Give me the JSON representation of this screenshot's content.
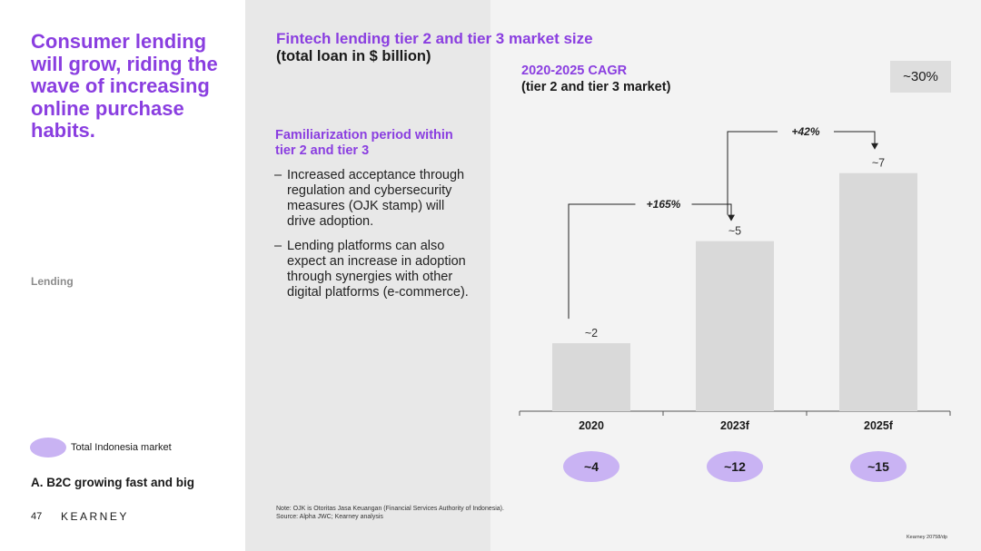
{
  "headline": "Consumer lending will grow, riding the wave of increasing online purchase habits.",
  "section_tag": "Lending",
  "legend": {
    "label": "Total Indonesia market"
  },
  "section_title": "A. B2C growing fast and big",
  "page_number": "47",
  "brand": "KEARNEY",
  "familiarization": {
    "title": "Familiarization period within tier 2 and tier 3",
    "bullets": [
      {
        "dash": "–",
        "text": "Increased acceptance through regulation and cybersecurity measures (OJK stamp) will drive adoption."
      },
      {
        "dash": "–",
        "text": "Lending platforms can also expect an increase in adoption through synergies with other digital platforms (e-commerce)."
      }
    ]
  },
  "cagr": {
    "title": "2020-2025 CAGR",
    "subtitle": "(tier 2 and tier 3 market)",
    "value": "~30%"
  },
  "note": "Note: OJK is Otoritas Jasa Keuangan (Financial Services Authority of Indonesia).",
  "source": "Source: Alpha JWC; Kearney analysis",
  "footer_code": "Kearney 20758/dp",
  "colors": {
    "accent": "#8a3ee0",
    "bar": "#d9d9d9",
    "pill": "#c9b3f3"
  },
  "chart_data": {
    "type": "bar",
    "title": "Fintech lending tier 2 and tier 3 market size",
    "subtitle": "(total loan in $ billion)",
    "categories": [
      "2020",
      "2023f",
      "2025f"
    ],
    "values": [
      2,
      5,
      7
    ],
    "value_labels": [
      "~2",
      "~5",
      "~7"
    ],
    "growth_annotations": [
      {
        "from": "2020",
        "to": "2023f",
        "label": "+165%"
      },
      {
        "from": "2023f",
        "to": "2025f",
        "label": "+42%"
      }
    ],
    "total_market_labels": [
      "~4",
      "~12",
      "~15"
    ],
    "ylim": [
      0,
      7.5
    ],
    "grid": false
  }
}
